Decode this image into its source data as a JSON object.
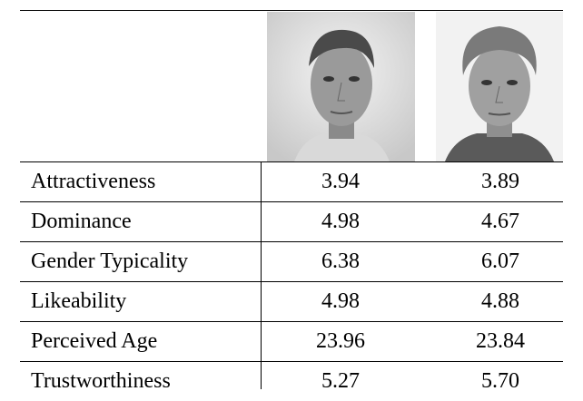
{
  "table": {
    "rows": [
      [
        "Attractiveness",
        "3.94",
        "3.89"
      ],
      [
        "Dominance",
        "4.98",
        "4.67"
      ],
      [
        "Gender Typicality",
        "6.38",
        "6.07"
      ],
      [
        "Likeability",
        "4.98",
        "4.88"
      ],
      [
        "Perceived Age",
        "23.96",
        "23.84"
      ],
      [
        "Trustworthiness",
        "5.27",
        "5.70"
      ]
    ]
  }
}
